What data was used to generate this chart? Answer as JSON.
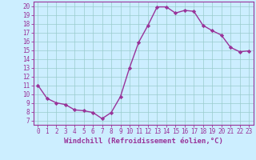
{
  "x": [
    0,
    1,
    2,
    3,
    4,
    5,
    6,
    7,
    8,
    9,
    10,
    11,
    12,
    13,
    14,
    15,
    16,
    17,
    18,
    19,
    20,
    21,
    22,
    23
  ],
  "y": [
    11,
    9.5,
    9,
    8.8,
    8.2,
    8.1,
    7.9,
    7.2,
    7.9,
    9.7,
    13.0,
    15.9,
    17.8,
    19.9,
    19.9,
    19.2,
    19.5,
    19.4,
    17.8,
    17.2,
    16.7,
    15.3,
    14.8,
    14.9
  ],
  "line_color": "#993399",
  "marker": "D",
  "markersize": 2.2,
  "linewidth": 1.0,
  "xlabel": "Windchill (Refroidissement éolien,°C)",
  "xlim": [
    -0.5,
    23.5
  ],
  "ylim": [
    6.5,
    20.5
  ],
  "yticks": [
    7,
    8,
    9,
    10,
    11,
    12,
    13,
    14,
    15,
    16,
    17,
    18,
    19,
    20
  ],
  "xticks": [
    0,
    1,
    2,
    3,
    4,
    5,
    6,
    7,
    8,
    9,
    10,
    11,
    12,
    13,
    14,
    15,
    16,
    17,
    18,
    19,
    20,
    21,
    22,
    23
  ],
  "background_color": "#cceeff",
  "grid_color": "#99cccc",
  "tick_fontsize": 5.5,
  "xlabel_fontsize": 6.5
}
